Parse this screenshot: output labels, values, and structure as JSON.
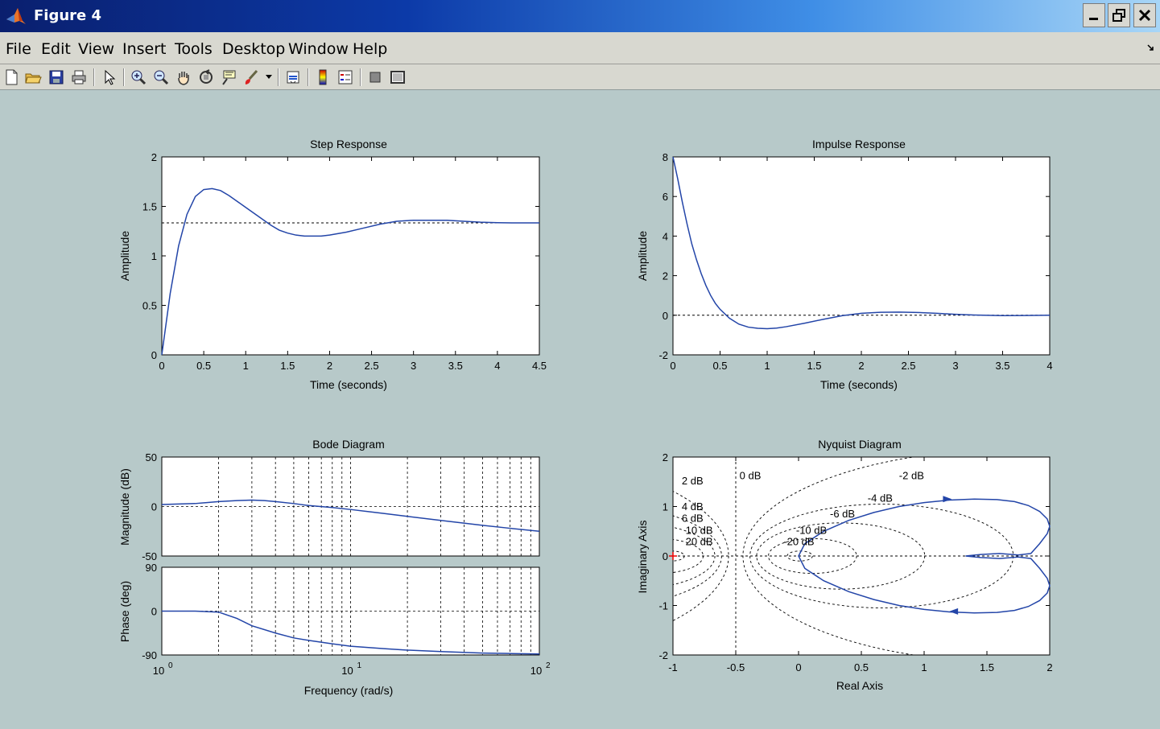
{
  "window": {
    "title": "Figure 4"
  },
  "menu": [
    "File",
    "Edit",
    "View",
    "Insert",
    "Tools",
    "Desktop",
    "Window",
    "Help"
  ],
  "toolbar": {
    "icons": [
      "new-figure-icon",
      "open-file-icon",
      "save-icon",
      "print-icon",
      "select-arrow-icon",
      "zoom-in-icon",
      "zoom-out-icon",
      "pan-hand-icon",
      "rotate-3d-icon",
      "data-cursor-icon",
      "brush-icon",
      "brush-dropdown-icon",
      "link-plot-icon",
      "colorbar-icon",
      "legend-icon",
      "hide-plot-tools-icon",
      "show-plot-tools-icon"
    ]
  },
  "plots": {
    "step": {
      "title": "Step Response",
      "xlabel": "Time (seconds)",
      "ylabel": "Amplitude",
      "xticks": [
        "0",
        "0.5",
        "1",
        "1.5",
        "2",
        "2.5",
        "3",
        "3.5",
        "4",
        "4.5"
      ],
      "yticks": [
        "0",
        "0.5",
        "1",
        "1.5",
        "2"
      ]
    },
    "impulse": {
      "title": "Impulse Response",
      "xlabel": "Time (seconds)",
      "ylabel": "Amplitude",
      "xticks": [
        "0",
        "0.5",
        "1",
        "1.5",
        "2",
        "2.5",
        "3",
        "3.5",
        "4"
      ],
      "yticks": [
        "-2",
        "0",
        "2",
        "4",
        "6",
        "8"
      ]
    },
    "bode": {
      "title": "Bode Diagram",
      "xlabel": "Frequency  (rad/s)",
      "ylabel_mag": "Magnitude (dB)",
      "ylabel_phase": "Phase (deg)",
      "mag_yticks": [
        "-50",
        "0",
        "50"
      ],
      "phase_yticks": [
        "-90",
        "0",
        "90"
      ],
      "xtick_base": "10",
      "xtick_exps": [
        "0",
        "1",
        "2"
      ]
    },
    "nyquist": {
      "title": "Nyquist Diagram",
      "xlabel": "Real Axis",
      "ylabel": "Imaginary Axis",
      "xticks": [
        "-1",
        "-0.5",
        "0",
        "0.5",
        "1",
        "1.5",
        "2"
      ],
      "yticks": [
        "-2",
        "-1",
        "0",
        "1",
        "2"
      ],
      "db_labels": [
        "0 dB",
        "-2 dB",
        "2 dB",
        "-4 dB",
        "4 dB",
        "-6 dB",
        "6 dB",
        "-10 dB",
        "10 dB",
        "-20 dB",
        "20 dB"
      ]
    }
  },
  "colors": {
    "curve": "#2345a8",
    "figure_bg": "#b7c9c9",
    "axes_bg": "#ffffff"
  },
  "chart_data": [
    {
      "type": "line",
      "title": "Step Response",
      "xlabel": "Time (seconds)",
      "ylabel": "Amplitude",
      "xlim": [
        0,
        4.5
      ],
      "ylim": [
        0,
        2
      ],
      "steady_state": 1.333,
      "series": [
        {
          "x": [
            0,
            0.1,
            0.2,
            0.3,
            0.4,
            0.5,
            0.6,
            0.7,
            0.8,
            0.9,
            1.0,
            1.1,
            1.2,
            1.3,
            1.4,
            1.5,
            1.6,
            1.7,
            1.8,
            1.9,
            2.0,
            2.2,
            2.4,
            2.6,
            2.8,
            3.0,
            3.2,
            3.4,
            3.6,
            3.8,
            4.0,
            4.2,
            4.5
          ],
          "y": [
            0,
            0.62,
            1.1,
            1.42,
            1.6,
            1.67,
            1.68,
            1.66,
            1.61,
            1.55,
            1.49,
            1.43,
            1.37,
            1.31,
            1.26,
            1.23,
            1.21,
            1.2,
            1.2,
            1.2,
            1.21,
            1.24,
            1.28,
            1.32,
            1.35,
            1.36,
            1.36,
            1.36,
            1.35,
            1.34,
            1.335,
            1.333,
            1.333
          ]
        }
      ]
    },
    {
      "type": "line",
      "title": "Impulse Response",
      "xlabel": "Time (seconds)",
      "ylabel": "Amplitude",
      "xlim": [
        0,
        4
      ],
      "ylim": [
        -2,
        8
      ],
      "series": [
        {
          "x": [
            0,
            0.05,
            0.1,
            0.15,
            0.2,
            0.25,
            0.3,
            0.35,
            0.4,
            0.45,
            0.5,
            0.6,
            0.7,
            0.8,
            0.9,
            1.0,
            1.1,
            1.2,
            1.4,
            1.6,
            1.8,
            2.0,
            2.2,
            2.4,
            2.6,
            2.8,
            3.0,
            3.2,
            3.5,
            4.0
          ],
          "y": [
            8,
            6.9,
            5.7,
            4.6,
            3.6,
            2.8,
            2.1,
            1.5,
            1.0,
            0.6,
            0.3,
            -0.15,
            -0.45,
            -0.6,
            -0.66,
            -0.68,
            -0.65,
            -0.58,
            -0.4,
            -0.2,
            -0.02,
            0.1,
            0.15,
            0.16,
            0.14,
            0.1,
            0.05,
            0.01,
            -0.02,
            0
          ]
        }
      ]
    },
    {
      "type": "line",
      "title": "Bode Diagram",
      "xlabel": "Frequency  (rad/s)",
      "xscale": "log",
      "xlim": [
        1,
        100
      ],
      "panels": [
        {
          "ylabel": "Magnitude (dB)",
          "ylim": [
            -50,
            50
          ],
          "series": [
            {
              "x": [
                1,
                1.5,
                2,
                2.5,
                3,
                3.5,
                4,
                5,
                6,
                8,
                10,
                15,
                20,
                30,
                50,
                70,
                100
              ],
              "y": [
                2,
                3,
                5,
                6,
                6.5,
                6,
                5,
                3,
                1,
                -1,
                -3,
                -7,
                -10,
                -14,
                -19,
                -22,
                -25
              ]
            }
          ]
        },
        {
          "ylabel": "Phase (deg)",
          "ylim": [
            -90,
            90
          ],
          "series": [
            {
              "x": [
                1,
                1.5,
                2,
                2.5,
                3,
                4,
                5,
                6,
                8,
                10,
                15,
                20,
                30,
                50,
                70,
                100
              ],
              "y": [
                0,
                0,
                -2,
                -15,
                -30,
                -45,
                -55,
                -60,
                -67,
                -72,
                -77,
                -80,
                -83,
                -86,
                -87,
                -88
              ]
            }
          ]
        }
      ]
    },
    {
      "type": "line",
      "title": "Nyquist Diagram",
      "xlabel": "Real Axis",
      "ylabel": "Imaginary Axis",
      "xlim": [
        -1,
        2
      ],
      "ylim": [
        -2,
        2
      ],
      "series": [
        {
          "x": [
            1.33,
            1.45,
            1.6,
            1.75,
            1.85,
            1.92,
            1.98,
            2.0,
            1.98,
            1.92,
            1.83,
            1.72,
            1.58,
            1.4,
            1.2,
            1.0,
            0.8,
            0.6,
            0.4,
            0.2,
            0.05,
            0.0,
            0.05,
            0.2,
            0.4,
            0.6,
            0.8,
            1.0,
            1.2,
            1.4,
            1.58,
            1.72,
            1.83,
            1.92,
            1.98,
            2.0,
            1.98,
            1.92,
            1.85,
            1.75,
            1.6,
            1.45,
            1.33
          ],
          "y": [
            0,
            0.03,
            0.05,
            0.02,
            0.05,
            0.25,
            0.45,
            0.6,
            0.75,
            0.9,
            1.02,
            1.1,
            1.14,
            1.15,
            1.13,
            1.08,
            1.0,
            0.88,
            0.72,
            0.5,
            0.25,
            0,
            -0.25,
            -0.5,
            -0.72,
            -0.88,
            -1.0,
            -1.08,
            -1.13,
            -1.15,
            -1.14,
            -1.1,
            -1.02,
            -0.9,
            -0.75,
            -0.6,
            -0.45,
            -0.25,
            -0.05,
            -0.02,
            -0.05,
            -0.03,
            0
          ]
        }
      ],
      "critical_point": [
        -1,
        0
      ]
    }
  ]
}
